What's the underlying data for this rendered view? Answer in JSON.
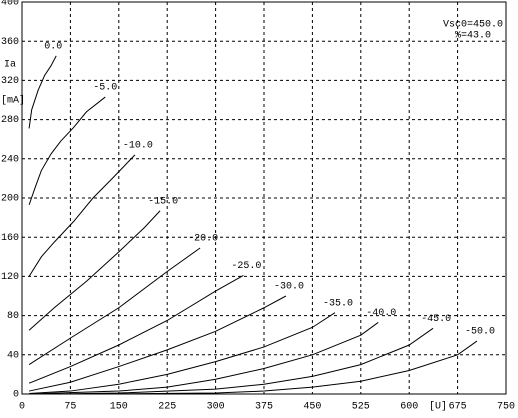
{
  "chart_data": {
    "type": "line",
    "ylabel": "Ia",
    "yunit": "[mA]",
    "xunit": "[U]",
    "annotations": [
      "Vsc0=450.0",
      "%=43.0"
    ],
    "xlim": [
      0,
      750
    ],
    "xticks": [
      0,
      75,
      150,
      225,
      300,
      375,
      450,
      525,
      600,
      675,
      750
    ],
    "ylim": [
      0,
      400
    ],
    "yticks": [
      0,
      40,
      80,
      120,
      160,
      200,
      240,
      280,
      320,
      360,
      400
    ],
    "grid": true,
    "color": "#000000",
    "series": [
      {
        "name": "0.0",
        "x": [
          11,
          15,
          25,
          35,
          45,
          53
        ],
        "values": [
          271,
          290,
          310,
          325,
          335,
          345
        ]
      },
      {
        "name": "-5.0",
        "x": [
          11,
          20,
          30,
          45,
          60,
          80,
          100,
          129
        ],
        "values": [
          193,
          210,
          228,
          245,
          258,
          272,
          288,
          303
        ]
      },
      {
        "name": "-10.0",
        "x": [
          11,
          30,
          50,
          80,
          110,
          140,
          175
        ],
        "values": [
          120,
          140,
          155,
          176,
          200,
          220,
          244
        ]
      },
      {
        "name": "-15.0",
        "x": [
          11,
          50,
          100,
          150,
          190,
          214
        ],
        "values": [
          65,
          88,
          115,
          145,
          170,
          187
        ]
      },
      {
        "name": "-20.0",
        "x": [
          11,
          75,
          150,
          225,
          276
        ],
        "values": [
          30,
          57,
          88,
          125,
          149
        ]
      },
      {
        "name": "-25.0",
        "x": [
          11,
          75,
          150,
          225,
          300,
          343
        ],
        "values": [
          11,
          28,
          50,
          75,
          105,
          121
        ]
      },
      {
        "name": "-30.0",
        "x": [
          11,
          75,
          150,
          225,
          300,
          375,
          409
        ],
        "values": [
          3,
          12,
          28,
          45,
          64,
          88,
          100
        ]
      },
      {
        "name": "-35.0",
        "x": [
          11,
          75,
          150,
          225,
          300,
          375,
          450,
          485
        ],
        "values": [
          0.5,
          3,
          10,
          20,
          33,
          48,
          68,
          83
        ]
      },
      {
        "name": "-40.0",
        "x": [
          11,
          150,
          225,
          300,
          375,
          450,
          525,
          552
        ],
        "values": [
          0,
          3,
          7,
          15,
          26,
          40,
          60,
          73
        ]
      },
      {
        "name": "-45.0",
        "x": [
          50,
          150,
          300,
          375,
          450,
          525,
          600,
          637
        ],
        "values": [
          0,
          1,
          5,
          10,
          18,
          30,
          50,
          67
        ]
      },
      {
        "name": "-50.0",
        "x": [
          100,
          300,
          375,
          450,
          525,
          600,
          675,
          705
        ],
        "values": [
          0,
          1,
          3,
          7,
          13,
          24,
          40,
          54
        ]
      }
    ]
  }
}
